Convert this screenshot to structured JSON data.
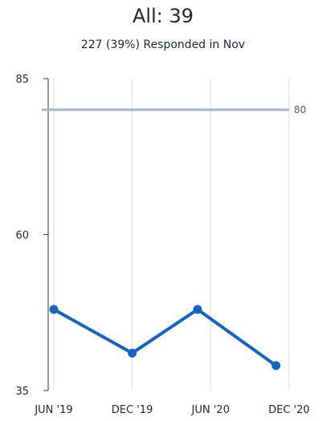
{
  "header": {
    "title": "All: 39",
    "subtitle": "227 (39%) Responded in Nov"
  },
  "colors": {
    "series": "#1565c0",
    "reference_line": "#aab4c8",
    "gridline": "#dcdcdc",
    "axis": "#333333"
  },
  "chart_data": {
    "type": "line",
    "title": "All: 39",
    "subtitle": "227 (39%) Responded in Nov",
    "xlabel": "",
    "ylabel": "",
    "x_tick_labels": [
      "JUN '19",
      "DEC '19",
      "JUN '20",
      "DEC '20"
    ],
    "x_ticks": [
      "2019-06",
      "2019-12",
      "2020-06",
      "2020-12"
    ],
    "xlim": [
      "2019-06",
      "2020-12"
    ],
    "y_ticks": [
      35,
      60,
      85
    ],
    "ylim": [
      35,
      85
    ],
    "grid": "vertical",
    "reference_line": {
      "value": 80,
      "label": "80"
    },
    "series": [
      {
        "x": [
          "2019-06",
          "2019-12",
          "2020-05",
          "2020-11"
        ],
        "values": [
          48,
          41,
          48,
          39
        ]
      }
    ]
  }
}
